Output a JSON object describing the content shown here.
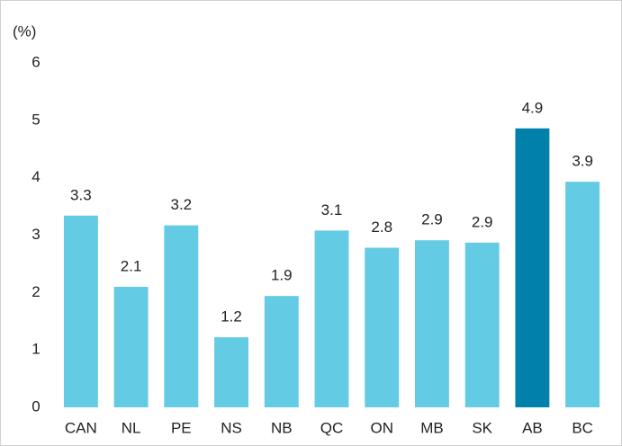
{
  "chart_data": {
    "type": "bar",
    "y_label": "(%)",
    "categories": [
      "CAN",
      "NL",
      "PE",
      "NS",
      "NB",
      "QC",
      "ON",
      "MB",
      "SK",
      "AB",
      "BC"
    ],
    "values": [
      3.34,
      2.1,
      3.17,
      1.22,
      1.94,
      3.08,
      2.78,
      2.91,
      2.87,
      4.86,
      3.93
    ],
    "value_labels": [
      "3.3",
      "2.1",
      "3.2",
      "1.2",
      "1.9",
      "3.1",
      "2.8",
      "2.9",
      "2.9",
      "4.9",
      "3.9"
    ],
    "colors": [
      "#63cbe3",
      "#63cbe3",
      "#63cbe3",
      "#63cbe3",
      "#63cbe3",
      "#63cbe3",
      "#63cbe3",
      "#63cbe3",
      "#63cbe3",
      "#0080ab",
      "#63cbe3"
    ],
    "ylim": [
      0,
      6
    ],
    "yticks": [
      0,
      1,
      2,
      3,
      4,
      5,
      6
    ],
    "grid": false
  }
}
